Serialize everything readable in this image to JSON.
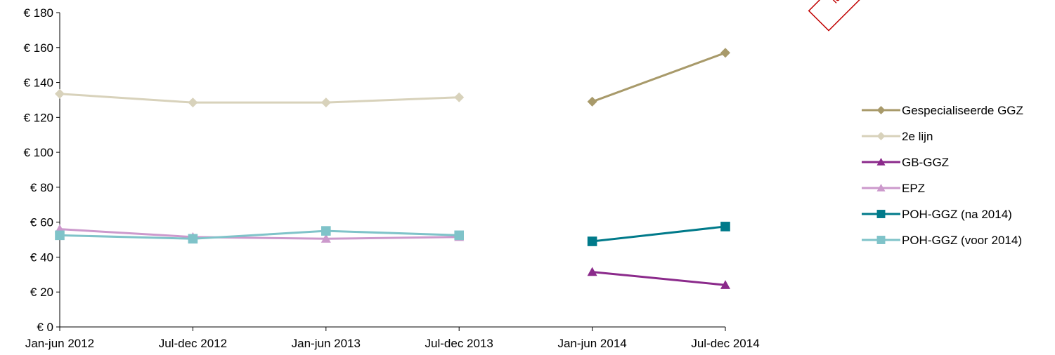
{
  "stamp": {
    "text": "ld",
    "color": "#c00000"
  },
  "chart_data": {
    "type": "line",
    "title": "",
    "xlabel": "",
    "ylabel": "",
    "ylim": [
      0,
      180
    ],
    "yticks": [
      0,
      20,
      40,
      60,
      80,
      100,
      120,
      140,
      160,
      180
    ],
    "ytick_labels": [
      "€ 0",
      "€ 20",
      "€ 40",
      "€ 60",
      "€ 80",
      "€ 100",
      "€ 120",
      "€ 140",
      "€ 160",
      "€ 180"
    ],
    "categories": [
      "Jan-jun 2012",
      "Jul-dec 2012",
      "Jan-jun 2013",
      "Jul-dec 2013",
      "Jan-jun 2014",
      "Jul-dec 2014"
    ],
    "grid": false,
    "legend_position": "right",
    "series": [
      {
        "name": "Gespecialiseerde GGZ",
        "color": "#a89a6a",
        "marker": "diamond",
        "values": [
          null,
          null,
          null,
          null,
          129,
          157
        ]
      },
      {
        "name": "2e lijn",
        "color": "#d8d2bb",
        "marker": "diamond",
        "values": [
          133.5,
          128.5,
          128.5,
          131.5,
          null,
          null
        ]
      },
      {
        "name": "GB-GGZ",
        "color": "#8b2a8b",
        "marker": "triangle",
        "values": [
          null,
          null,
          null,
          null,
          31.5,
          24
        ]
      },
      {
        "name": "EPZ",
        "color": "#cc99cc",
        "marker": "triangle",
        "values": [
          56,
          51.5,
          50.5,
          51.5,
          null,
          null
        ]
      },
      {
        "name": "POH-GGZ (na 2014)",
        "color": "#007a8a",
        "marker": "square",
        "values": [
          null,
          null,
          null,
          null,
          49,
          57.5
        ]
      },
      {
        "name": "POH-GGZ (voor 2014)",
        "color": "#7fc3c9",
        "marker": "square",
        "values": [
          52.5,
          50.5,
          55,
          52.5,
          null,
          null
        ]
      }
    ]
  }
}
